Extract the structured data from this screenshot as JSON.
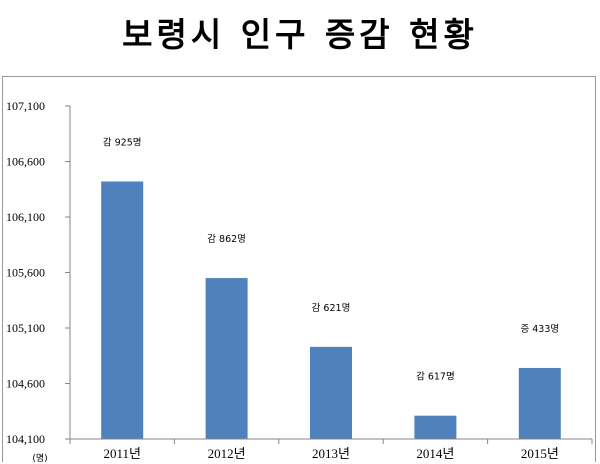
{
  "chart_data": {
    "type": "bar",
    "title": "보령시 인구 증감 현황",
    "categories": [
      "2011년",
      "2012년",
      "2013년",
      "2014년",
      "2015년"
    ],
    "values": [
      106420,
      105550,
      104930,
      104310,
      104740
    ],
    "data_labels": [
      "감 925명",
      "감 862명",
      "감 621명",
      "감 617명",
      "증 433명"
    ],
    "y_ticks": [
      "107,100",
      "106,600",
      "106,100",
      "105,600",
      "105,100",
      "104,600",
      "104,100"
    ],
    "y_tick_values": [
      107100,
      106600,
      106100,
      105600,
      105100,
      104600,
      104100
    ],
    "ylim": [
      104100,
      107100
    ],
    "y_unit": "(명)",
    "grid": false,
    "colors": {
      "bar": "#4f81bd",
      "axis": "#868686"
    }
  }
}
